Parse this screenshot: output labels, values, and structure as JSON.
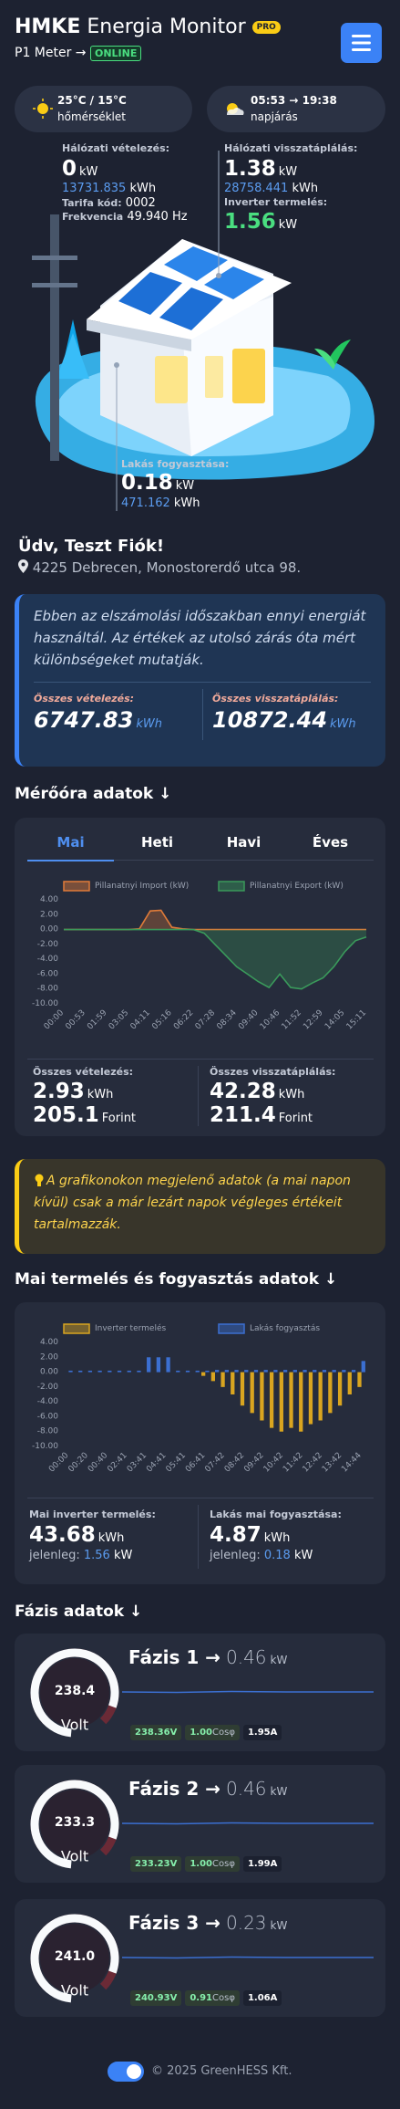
{
  "header": {
    "title_bold": "HMKE",
    "title_rest": "Energia Monitor",
    "badge": "PRO",
    "meter": "P1 Meter →",
    "status": "ONLINE"
  },
  "weather": {
    "temp": "25°C / 15°C",
    "temp_label": "hőmérséklet",
    "sun": "05:53 → 19:38",
    "sun_label": "napjárás"
  },
  "overview": {
    "grid_import": {
      "label": "Hálózati vételezés:",
      "value": "0",
      "unit": "kW",
      "total": "13731.835",
      "total_unit": "kWh",
      "tariff_label": "Tarifa kód:",
      "tariff": "0002",
      "freq_label": "Frekvencia",
      "freq": "49.940",
      "freq_unit": "Hz"
    },
    "grid_export": {
      "label": "Hálózati visszatáplálás:",
      "value": "1.38",
      "unit": "kW",
      "total": "28758.441",
      "total_unit": "kWh"
    },
    "inverter": {
      "label": "Inverter termelés:",
      "value": "1.56",
      "unit": "kW"
    },
    "home": {
      "label": "Lakás fogyasztása:",
      "value": "0.18",
      "unit": "kW",
      "total": "471.162",
      "total_unit": "kWh"
    }
  },
  "greeting": {
    "title": "Üdv, Teszt Fiók!",
    "address": "4225 Debrecen, Monostorerdő utca 98."
  },
  "billing": {
    "text": "Ebben az elszámolási időszakban ennyi energiát használtál. Az értékek az utolsó zárás óta mért különbségeket mutatják.",
    "import_label": "Összes vételezés:",
    "import_value": "6747.83",
    "import_unit": "kWh",
    "export_label": "Összes visszatáplálás:",
    "export_value": "10872.44",
    "export_unit": "kWh"
  },
  "meter": {
    "title": "Mérőóra adatok ↓",
    "tabs": [
      "Mai",
      "Heti",
      "Havi",
      "Éves"
    ],
    "chart": {
      "type": "line",
      "categories": [
        "00:00",
        null,
        "00:53",
        null,
        "01:59",
        null,
        "03:05",
        null,
        "04:11",
        null,
        "05:16",
        null,
        "06:22",
        null,
        "07:28",
        null,
        "08:34",
        null,
        "09:40",
        null,
        "10:46",
        null,
        "11:52",
        null,
        "12:59",
        null,
        "14:05",
        null,
        "15:11"
      ],
      "series": [
        {
          "name": "Pillanatnyi Import (kW)",
          "color": "#e07b39",
          "values": [
            0,
            0,
            0,
            0,
            0,
            0,
            0,
            0.1,
            2.5,
            2.6,
            0.3,
            0.1,
            0,
            0,
            0,
            0,
            0,
            0,
            0,
            0,
            0,
            0,
            0,
            0,
            0,
            0,
            0,
            0,
            0
          ]
        },
        {
          "name": "Pillanatnyi Export (kW)",
          "color": "#3a9a5b",
          "values": [
            0,
            0,
            0,
            0,
            0,
            0,
            0,
            0,
            0,
            0,
            0,
            0,
            0,
            -0.5,
            -2,
            -3.5,
            -5,
            -6,
            -7,
            -7.8,
            -6,
            -7.8,
            -8,
            -7.2,
            -6.5,
            -5,
            -3,
            -1.5,
            -1
          ]
        }
      ],
      "ylim": [
        -10,
        4
      ],
      "yticks": [
        {
          "value": 4,
          "label": "4.00"
        },
        {
          "value": 2,
          "label": "2.00"
        },
        {
          "value": 0,
          "label": "0.00"
        },
        {
          "value": -2,
          "label": "-2.00"
        },
        {
          "value": -4,
          "label": "-4.00"
        },
        {
          "value": -6,
          "label": "-6.00"
        },
        {
          "value": -8,
          "label": "-8.00"
        },
        {
          "value": -10,
          "label": "-10.00"
        }
      ],
      "grid": false
    },
    "summary": {
      "import_label": "Összes vételezés:",
      "import_kwh": "2.93",
      "kwh_unit": "kWh",
      "import_ft": "205.1",
      "ft_unit": "Forint",
      "export_label": "Összes visszatáplálás:",
      "export_kwh": "42.28",
      "export_ft": "211.4"
    }
  },
  "note": {
    "text": "A grafikonokon megjelenő adatok (a mai napon kívül) csak a már lezárt napok végleges értékeit tartalmazzák."
  },
  "production": {
    "title": "Mai termelés és fogyasztás adatok ↓",
    "chart": {
      "type": "bar",
      "categories": [
        "00:00",
        null,
        "00:20",
        null,
        "00:40",
        null,
        "02:41",
        null,
        "03:41",
        null,
        "04:41",
        null,
        "05:41",
        null,
        "06:41",
        null,
        "07:42",
        null,
        "08:42",
        null,
        "09:42",
        null,
        "10:42",
        null,
        "11:42",
        null,
        "12:42",
        null,
        "13:42",
        null,
        "14:44"
      ],
      "series": [
        {
          "name": "Inverter termelés",
          "color": "#d9a520",
          "values": [
            0,
            0,
            0,
            0,
            0,
            0,
            0,
            0,
            0,
            0,
            0,
            0,
            0,
            0,
            -0.5,
            -1.2,
            -2,
            -3,
            -4.5,
            -5.5,
            -6.5,
            -7.5,
            -8,
            -7.5,
            -8,
            -7,
            -6.5,
            -5.5,
            -4.5,
            -3,
            -2
          ]
        },
        {
          "name": "Lakás fogyasztás",
          "color": "#3b6fd1",
          "values": [
            0.2,
            0.2,
            0.2,
            0.2,
            0.2,
            0.2,
            0.2,
            0.2,
            2,
            2,
            2,
            0.2,
            0.2,
            0.2,
            0.2,
            0.3,
            0.3,
            0.3,
            0.3,
            0.3,
            0.3,
            0.3,
            0.3,
            0.3,
            0.3,
            0.3,
            0.3,
            0.3,
            0.3,
            0.3,
            1.5
          ]
        }
      ],
      "ylim": [
        -10,
        4
      ],
      "yticks": [
        {
          "value": 4,
          "label": "4.00"
        },
        {
          "value": 2,
          "label": "2.00"
        },
        {
          "value": 0,
          "label": "0.00"
        },
        {
          "value": -2,
          "label": "-2.00"
        },
        {
          "value": -4,
          "label": "-4.00"
        },
        {
          "value": -6,
          "label": "-6.00"
        },
        {
          "value": -8,
          "label": "-8.00"
        },
        {
          "value": -10,
          "label": "-10.00"
        }
      ],
      "grid": false
    },
    "summary": {
      "inv_label": "Mai inverter termelés:",
      "inv_value": "43.68",
      "kwh_unit": "kWh",
      "now_label": "jelenleg:",
      "inv_now": "1.56",
      "kw_unit": "kW",
      "home_label": "Lakás mai fogyasztása:",
      "home_value": "4.87",
      "home_now": "0.18"
    }
  },
  "phases": {
    "title": "Fázis adatok ↓",
    "items": [
      {
        "name": "Fázis 1 →",
        "power": "0.46",
        "unit": "kW",
        "voltage": "238.4",
        "volt_label": "Volt",
        "v": "238.36V",
        "cos": "1.00",
        "cos_label": "Cosφ",
        "amp": "1.95A"
      },
      {
        "name": "Fázis 2 →",
        "power": "0.46",
        "unit": "kW",
        "voltage": "233.3",
        "volt_label": "Volt",
        "v": "233.23V",
        "cos": "1.00",
        "cos_label": "Cosφ",
        "amp": "1.99A"
      },
      {
        "name": "Fázis 3 →",
        "power": "0.23",
        "unit": "kW",
        "voltage": "241.0",
        "volt_label": "Volt",
        "v": "240.93V",
        "cos": "0.91",
        "cos_label": "Cosφ",
        "amp": "1.06A"
      }
    ]
  },
  "footer": {
    "text": "© 2025 GreenHESS Kft."
  }
}
